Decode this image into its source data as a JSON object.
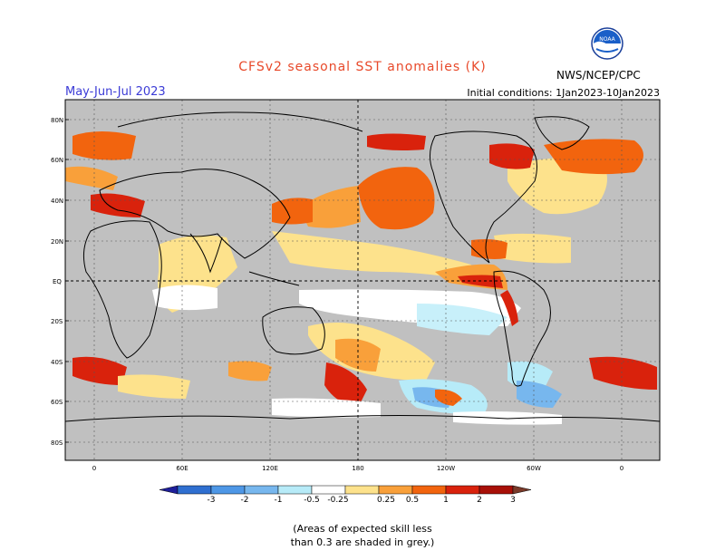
{
  "title": "CFSv2 seasonal SST anomalies (K)",
  "season": "May-Jun-Jul 2023",
  "initial_conditions": "Initial conditions: 1Jan2023-10Jan2023",
  "agency": "NWS/NCEP/CPC",
  "logo_text": "NOAA",
  "caption_line1": "(Areas of expected skill less",
  "caption_line2": "than 0.3 are shaded in grey.)",
  "map": {
    "lat_labels": [
      "80N",
      "60N",
      "40N",
      "20N",
      "EQ",
      "20S",
      "40S",
      "60S",
      "80S"
    ],
    "lon_labels": [
      "0",
      "60E",
      "120E",
      "180",
      "120W",
      "60W",
      "0"
    ]
  },
  "colorbar": {
    "labels": [
      "-3",
      "-2",
      "-1",
      "-0.5",
      "-0.25",
      "0.25",
      "0.5",
      "1",
      "2",
      "3"
    ],
    "colors": [
      "#1f1f9a",
      "#2f6fd0",
      "#4e97e6",
      "#77b7ee",
      "#b7ebf8",
      "#ffffff",
      "#fde28c",
      "#f9a03a",
      "#f2640e",
      "#d9220c",
      "#a81008",
      "#7a3a2a"
    ]
  },
  "colors": {
    "grey": "#c0c0c0",
    "title": "#e8492a",
    "season": "#3b3bd6"
  }
}
